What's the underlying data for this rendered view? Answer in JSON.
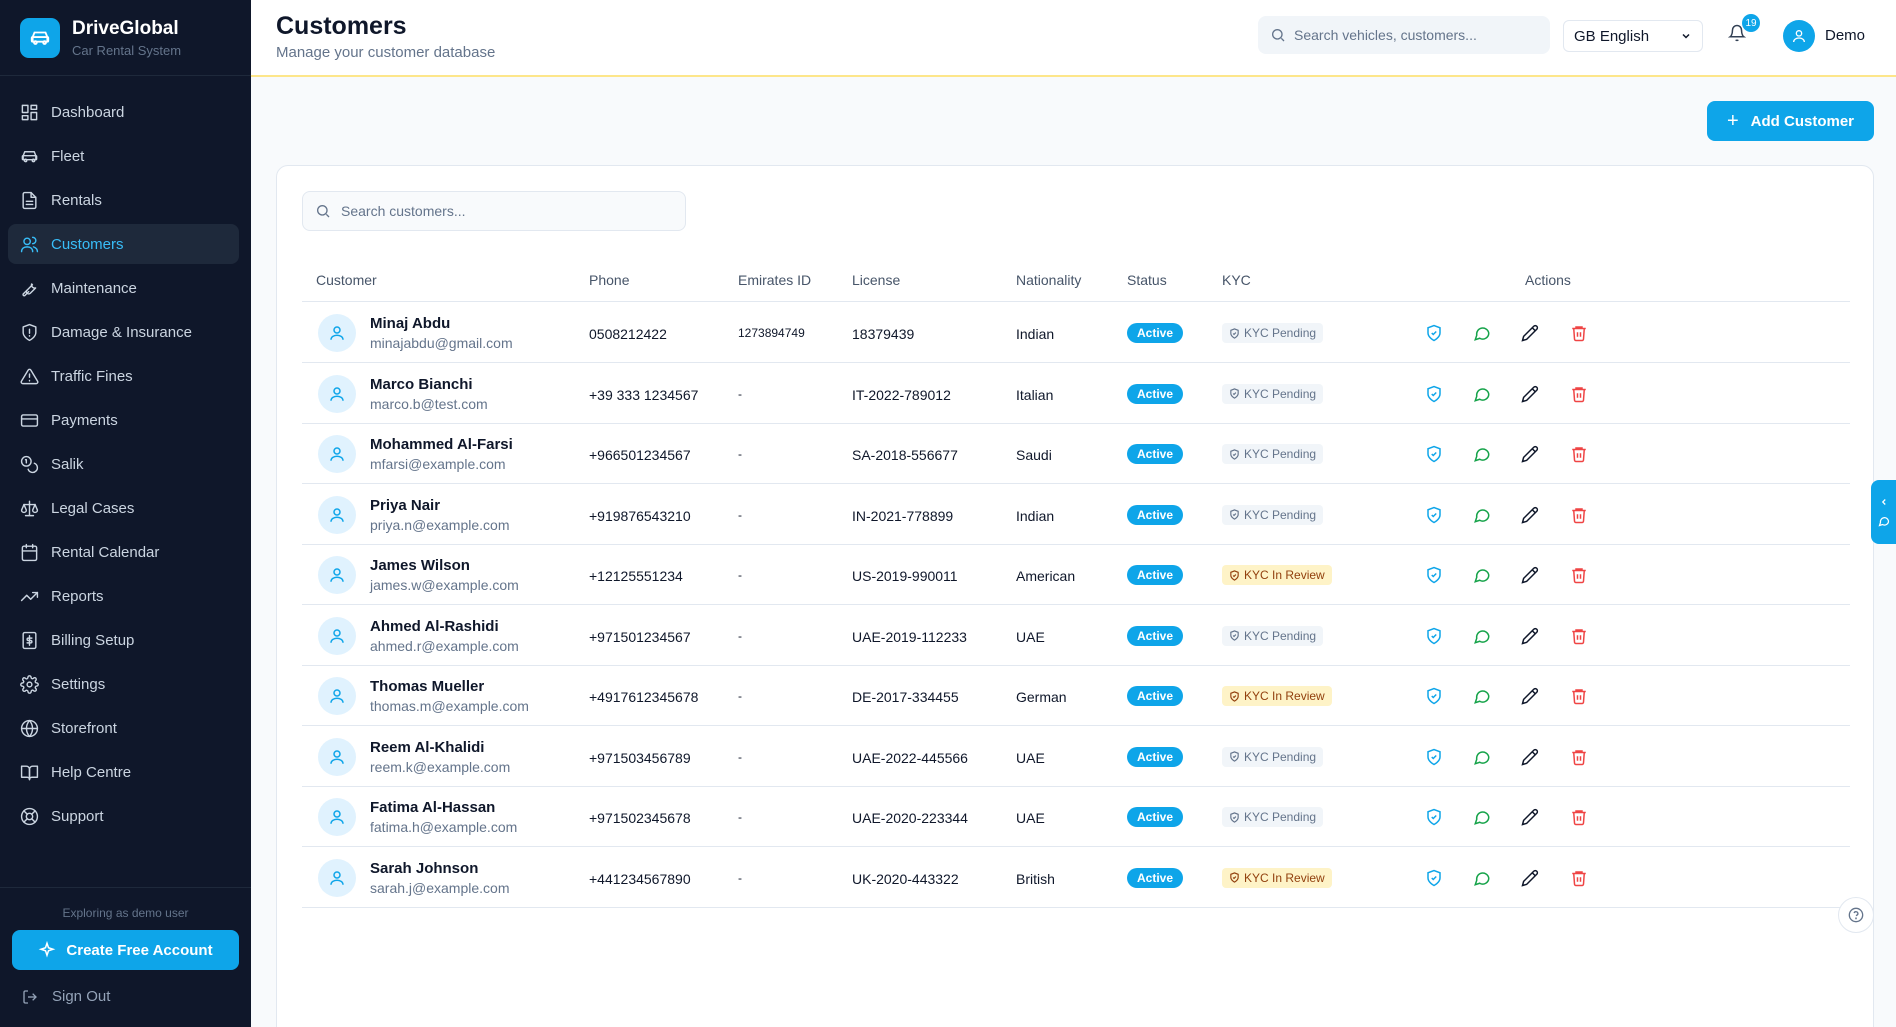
{
  "brand": {
    "name": "DriveGlobal",
    "subtitle": "Car Rental System"
  },
  "sidebar": {
    "items": [
      {
        "label": "Dashboard",
        "icon": "dashboard-icon"
      },
      {
        "label": "Fleet",
        "icon": "car-icon"
      },
      {
        "label": "Rentals",
        "icon": "document-icon"
      },
      {
        "label": "Customers",
        "icon": "users-icon",
        "active": true
      },
      {
        "label": "Maintenance",
        "icon": "wrench-icon"
      },
      {
        "label": "Damage & Insurance",
        "icon": "shield-icon"
      },
      {
        "label": "Traffic Fines",
        "icon": "warning-icon"
      },
      {
        "label": "Payments",
        "icon": "credit-card-icon"
      },
      {
        "label": "Salik",
        "icon": "coins-icon"
      },
      {
        "label": "Legal Cases",
        "icon": "scale-icon"
      },
      {
        "label": "Rental Calendar",
        "icon": "calendar-icon"
      },
      {
        "label": "Reports",
        "icon": "trend-icon"
      },
      {
        "label": "Billing Setup",
        "icon": "receipt-icon"
      },
      {
        "label": "Settings",
        "icon": "gear-icon"
      },
      {
        "label": "Storefront",
        "icon": "globe-icon"
      },
      {
        "label": "Help Centre",
        "icon": "book-icon"
      },
      {
        "label": "Support",
        "icon": "lifebuoy-icon"
      }
    ],
    "demo_note": "Exploring as demo user",
    "create_account": "Create Free Account",
    "sign_out": "Sign Out"
  },
  "header": {
    "title": "Customers",
    "subtitle": "Manage your customer database",
    "search_placeholder": "Search vehicles, customers...",
    "language": "GB English",
    "notification_count": "19",
    "user": "Demo"
  },
  "add_button": "Add Customer",
  "table": {
    "search_placeholder": "Search customers...",
    "columns": [
      "Customer",
      "Phone",
      "Emirates ID",
      "License",
      "Nationality",
      "Status",
      "KYC",
      "Actions"
    ],
    "rows": [
      {
        "name": "Minaj Abdu",
        "email": "minajabdu@gmail.com",
        "phone": "0508212422",
        "emirates_id": "1273894749",
        "license": "18379439",
        "nationality": "Indian",
        "status": "Active",
        "kyc": "KYC Pending"
      },
      {
        "name": "Marco Bianchi",
        "email": "marco.b@test.com",
        "phone": "+39 333 1234567",
        "emirates_id": "-",
        "license": "IT-2022-789012",
        "nationality": "Italian",
        "status": "Active",
        "kyc": "KYC Pending"
      },
      {
        "name": "Mohammed Al-Farsi",
        "email": "mfarsi@example.com",
        "phone": "+966501234567",
        "emirates_id": "-",
        "license": "SA-2018-556677",
        "nationality": "Saudi",
        "status": "Active",
        "kyc": "KYC Pending"
      },
      {
        "name": "Priya Nair",
        "email": "priya.n@example.com",
        "phone": "+919876543210",
        "emirates_id": "-",
        "license": "IN-2021-778899",
        "nationality": "Indian",
        "status": "Active",
        "kyc": "KYC Pending"
      },
      {
        "name": "James Wilson",
        "email": "james.w@example.com",
        "phone": "+12125551234",
        "emirates_id": "-",
        "license": "US-2019-990011",
        "nationality": "American",
        "status": "Active",
        "kyc": "KYC In Review"
      },
      {
        "name": "Ahmed Al-Rashidi",
        "email": "ahmed.r@example.com",
        "phone": "+971501234567",
        "emirates_id": "-",
        "license": "UAE-2019-112233",
        "nationality": "UAE",
        "status": "Active",
        "kyc": "KYC Pending"
      },
      {
        "name": "Thomas Mueller",
        "email": "thomas.m@example.com",
        "phone": "+4917612345678",
        "emirates_id": "-",
        "license": "DE-2017-334455",
        "nationality": "German",
        "status": "Active",
        "kyc": "KYC In Review"
      },
      {
        "name": "Reem Al-Khalidi",
        "email": "reem.k@example.com",
        "phone": "+971503456789",
        "emirates_id": "-",
        "license": "UAE-2022-445566",
        "nationality": "UAE",
        "status": "Active",
        "kyc": "KYC Pending"
      },
      {
        "name": "Fatima Al-Hassan",
        "email": "fatima.h@example.com",
        "phone": "+971502345678",
        "emirates_id": "-",
        "license": "UAE-2020-223344",
        "nationality": "UAE",
        "status": "Active",
        "kyc": "KYC Pending"
      },
      {
        "name": "Sarah Johnson",
        "email": "sarah.j@example.com",
        "phone": "+441234567890",
        "emirates_id": "-",
        "license": "UK-2020-443322",
        "nationality": "British",
        "status": "Active",
        "kyc": "KYC In Review"
      }
    ]
  },
  "colors": {
    "accent": "#0ea5e9",
    "sidebar_bg": "#0f172a",
    "danger": "#ef4444",
    "success": "#16a34a"
  }
}
